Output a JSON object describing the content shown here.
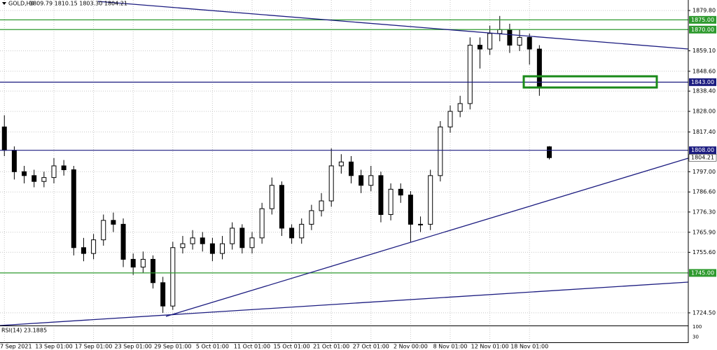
{
  "chart_data": {
    "type": "candlestick",
    "header": {
      "symbol": "GOLD,H4",
      "ohlc": "1809.79 1810.15 1803.30 1804.21"
    },
    "categories": [
      "7 Sep 2021",
      null,
      null,
      null,
      null,
      "13 Sep 01:00",
      null,
      null,
      null,
      "17 Sep 01:00",
      null,
      null,
      null,
      "23 Sep 01:00",
      null,
      null,
      null,
      "29 Sep 01:00",
      null,
      null,
      null,
      "5 Oct 01:00",
      null,
      null,
      null,
      "11 Oct 01:00",
      null,
      null,
      null,
      "15 Oct 01:00",
      null,
      null,
      null,
      "21 Oct 01:00",
      null,
      null,
      null,
      "27 Oct 01:00",
      null,
      null,
      null,
      "2 Nov 00:00",
      null,
      null,
      null,
      "8 Nov 01:00",
      null,
      null,
      null,
      "12 Nov 01:00",
      null,
      null,
      null,
      "18 Nov 01:00",
      null,
      null
    ],
    "open": [
      1820,
      1808,
      1797,
      1795,
      1792,
      1794,
      1800,
      1798,
      1758,
      1755,
      1762,
      1772,
      1770,
      1752,
      1748,
      1752,
      1740,
      1728,
      1758,
      1760,
      1763,
      1760,
      1755,
      1760,
      1768,
      1758,
      1763,
      1778,
      1790,
      1768,
      1763,
      1770,
      1777,
      1782,
      1800,
      1802,
      1795,
      1790,
      1795,
      1775,
      1788,
      1785,
      1770,
      1770,
      1795,
      1820,
      1828,
      1832,
      1862,
      1860,
      1868,
      1870,
      1862,
      1866,
      1860,
      1809.79
    ],
    "high": [
      1826,
      1810,
      1800,
      1798,
      1797,
      1804,
      1803,
      1800,
      1763,
      1765,
      1775,
      1776,
      1773,
      1755,
      1756,
      1754,
      1743,
      1761,
      1764,
      1767,
      1766,
      1763,
      1764,
      1771,
      1770,
      1766,
      1781,
      1794,
      1792,
      1770,
      1773,
      1780,
      1786,
      1809,
      1806,
      1805,
      1798,
      1800,
      1797,
      1791,
      1791,
      1787,
      1774,
      1798,
      1823,
      1831,
      1836,
      1866,
      1866,
      1872,
      1877,
      1873,
      1870,
      1868,
      1862,
      1810.15
    ],
    "low": [
      1805,
      1793,
      1791,
      1789,
      1789,
      1791,
      1795,
      1754,
      1751,
      1752,
      1759,
      1766,
      1748,
      1744,
      1745,
      1737,
      1724.5,
      1726,
      1755,
      1757,
      1756,
      1751,
      1752,
      1757,
      1755,
      1755,
      1760,
      1775,
      1764,
      1760,
      1760,
      1767,
      1774,
      1779,
      1796,
      1791,
      1786,
      1787,
      1771,
      1772,
      1781,
      1761,
      1766,
      1767,
      1792,
      1817,
      1825,
      1829,
      1850,
      1857,
      1864,
      1858,
      1859,
      1852,
      1836,
      1803.3
    ],
    "close": [
      1808,
      1797,
      1795,
      1792,
      1794,
      1800,
      1798,
      1758,
      1755,
      1762,
      1772,
      1770,
      1752,
      1748,
      1752,
      1740,
      1728,
      1758,
      1760,
      1763,
      1760,
      1755,
      1760,
      1768,
      1758,
      1763,
      1778,
      1790,
      1768,
      1763,
      1770,
      1777,
      1782,
      1800,
      1802,
      1795,
      1790,
      1795,
      1775,
      1788,
      1785,
      1770,
      1770,
      1795,
      1820,
      1828,
      1832,
      1862,
      1860,
      1868,
      1870,
      1862,
      1866,
      1860,
      1840,
      1804.21
    ],
    "ylim": [
      1718.0,
      1885.2
    ],
    "yticks": [
      {
        "value": 1879.8,
        "label": "1879.80"
      },
      {
        "value": 1859.1,
        "label": "1859.10"
      },
      {
        "value": 1848.6,
        "label": "1848.60"
      },
      {
        "value": 1838.4,
        "label": "1838.40"
      },
      {
        "value": 1828.0,
        "label": "1828.00"
      },
      {
        "value": 1817.4,
        "label": "1817.40"
      },
      {
        "value": 1797.0,
        "label": "1797.00"
      },
      {
        "value": 1786.6,
        "label": "1786.60"
      },
      {
        "value": 1776.3,
        "label": "1776.30"
      },
      {
        "value": 1765.9,
        "label": "1765.90"
      },
      {
        "value": 1755.6,
        "label": "1755.60"
      },
      {
        "value": 1724.5,
        "label": "1724.50"
      }
    ],
    "grid": true,
    "levels": [
      {
        "value": 1875,
        "label": "1875.00",
        "color": "#2e9a2e"
      },
      {
        "value": 1870,
        "label": "1870.00",
        "color": "#2e9a2e"
      },
      {
        "value": 1843,
        "label": "1843.00",
        "color": "#1c1c80"
      },
      {
        "value": 1808,
        "label": "1808.00",
        "color": "#1c1c80"
      },
      {
        "value": 1745,
        "label": "1745.00",
        "color": "#2e9a2e"
      }
    ],
    "current_price": {
      "value": 1804.21,
      "label": "1804.21"
    },
    "rsi": {
      "label": "RSI(14) 23.1885",
      "ylim": [
        0,
        100
      ],
      "yticks": [
        100,
        30
      ]
    }
  }
}
